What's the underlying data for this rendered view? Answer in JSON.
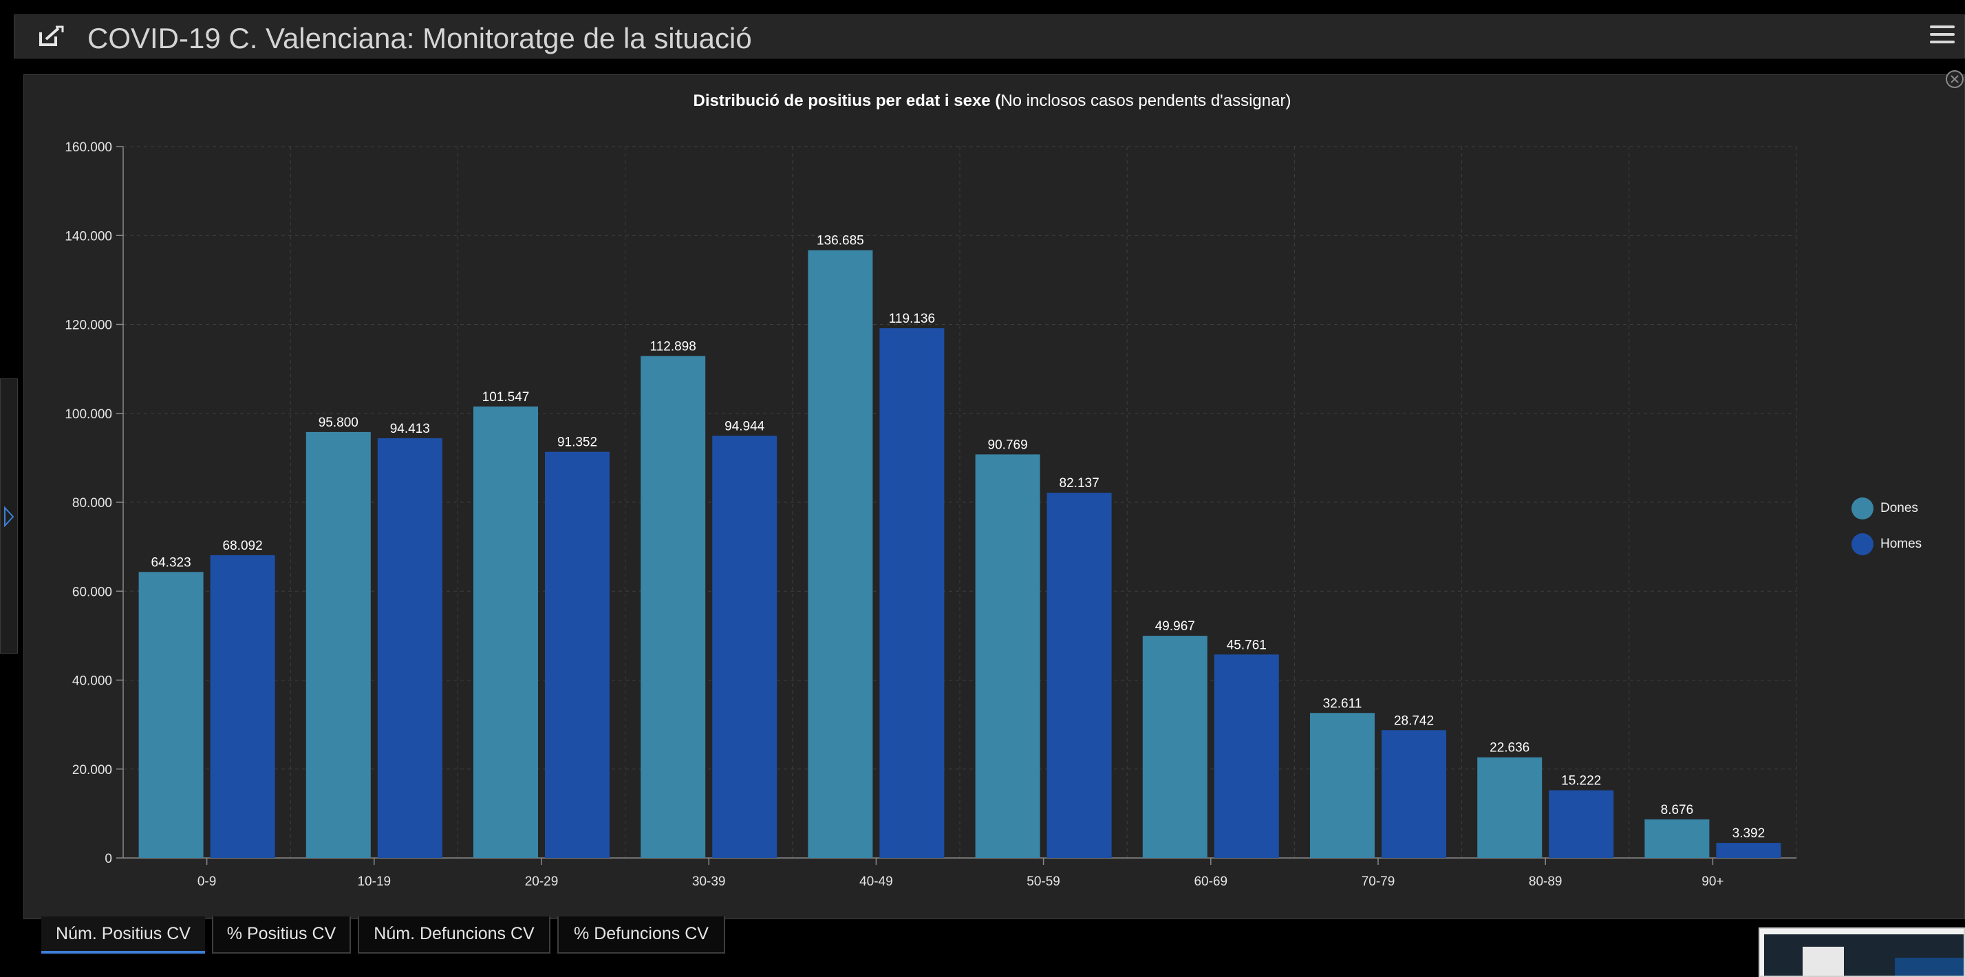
{
  "header": {
    "title": "COVID-19 C. Valenciana: Monitoratge de la situació"
  },
  "chart_title": {
    "bold": "Distribució de positius per edat i sexe (",
    "rest": "No inclosos casos pendents d'assignar)"
  },
  "legend": [
    {
      "label": "Dones",
      "color": "#3a86a7"
    },
    {
      "label": "Homes",
      "color": "#1d4fa6"
    }
  ],
  "tabs": [
    {
      "label": "Núm. Positius CV"
    },
    {
      "label": "% Positius CV"
    },
    {
      "label": "Núm. Defuncions CV"
    },
    {
      "label": "% Defuncions CV"
    }
  ],
  "chart_data": {
    "type": "bar",
    "categories": [
      "0-9",
      "10-19",
      "20-29",
      "30-39",
      "40-49",
      "50-59",
      "60-69",
      "70-79",
      "80-89",
      "90+"
    ],
    "series": [
      {
        "name": "Dones",
        "color": "#3a86a7",
        "values": [
          64323,
          95800,
          101547,
          112898,
          136685,
          90769,
          49967,
          32611,
          22636,
          8676
        ],
        "labels": [
          "64.323",
          "95.800",
          "101.547",
          "112.898",
          "136.685",
          "90.769",
          "49.967",
          "32.611",
          "22.636",
          "8.676"
        ]
      },
      {
        "name": "Homes",
        "color": "#1d4fa6",
        "values": [
          68092,
          94413,
          91352,
          94944,
          119136,
          82137,
          45761,
          28742,
          15222,
          3392
        ],
        "labels": [
          "68.092",
          "94.413",
          "91.352",
          "94.944",
          "119.136",
          "82.137",
          "45.761",
          "28.742",
          "15.222",
          "3.392"
        ]
      }
    ],
    "ylim": [
      0,
      160000
    ],
    "yticks": [
      0,
      20000,
      40000,
      60000,
      80000,
      100000,
      120000,
      140000,
      160000
    ],
    "ytick_labels": [
      "0",
      "20.000",
      "40.000",
      "60.000",
      "80.000",
      "100.000",
      "120.000",
      "140.000",
      "160.000"
    ],
    "grid": true,
    "legend_position": "right"
  }
}
